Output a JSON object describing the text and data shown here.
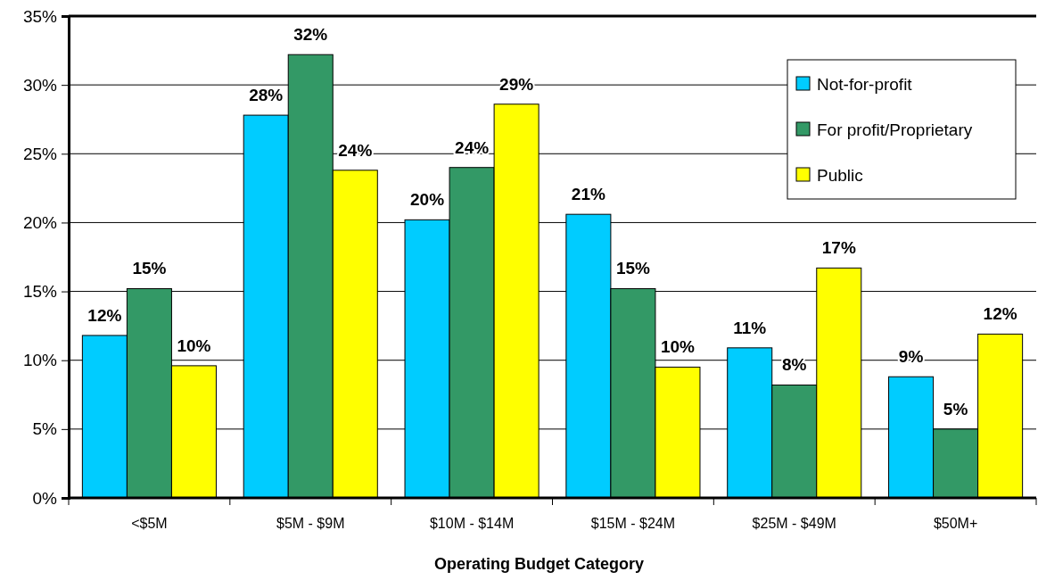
{
  "chart_data": {
    "type": "bar",
    "xlabel": "Operating Budget Category",
    "categories": [
      "<$5M",
      "$5M - $9M",
      "$10M - $14M",
      "$15M - $24M",
      "$25M - $49M",
      "$50M+"
    ],
    "series": [
      {
        "name": "Not-for-profit",
        "color": "#00ccff",
        "values": [
          11.8,
          27.8,
          20.2,
          20.6,
          10.9,
          8.8
        ],
        "value_labels": [
          "12%",
          "28%",
          "20%",
          "21%",
          "11%",
          "9%"
        ]
      },
      {
        "name": "For profit/Proprietary",
        "color": "#339966",
        "values": [
          15.2,
          32.2,
          24.0,
          15.2,
          8.2,
          5.0
        ],
        "value_labels": [
          "15%",
          "32%",
          "24%",
          "15%",
          "8%",
          "5%"
        ]
      },
      {
        "name": "Public",
        "color": "#ffff00",
        "values": [
          9.6,
          23.8,
          28.6,
          9.5,
          16.7,
          11.9
        ],
        "value_labels": [
          "10%",
          "24%",
          "29%",
          "10%",
          "17%",
          "12%"
        ]
      }
    ],
    "ylim": [
      0,
      35
    ],
    "yticks": [
      {
        "value": 0,
        "label": "0%"
      },
      {
        "value": 5,
        "label": "5%"
      },
      {
        "value": 10,
        "label": "10%"
      },
      {
        "value": 15,
        "label": "15%"
      },
      {
        "value": 20,
        "label": "20%"
      },
      {
        "value": 25,
        "label": "25%"
      },
      {
        "value": 30,
        "label": "30%"
      },
      {
        "value": 35,
        "label": "35%"
      }
    ],
    "grid": "y",
    "legend": "top right"
  }
}
